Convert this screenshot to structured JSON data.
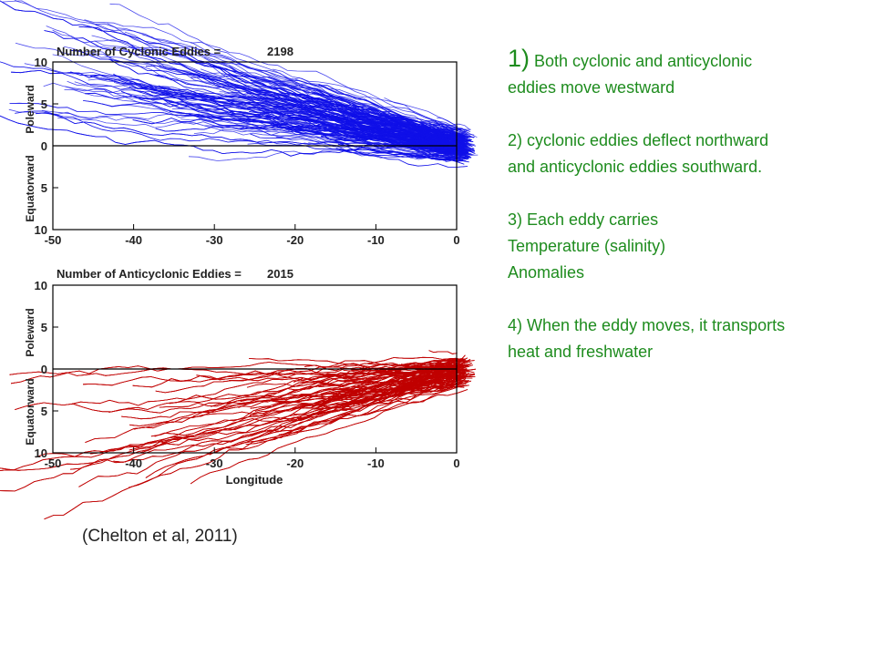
{
  "chart_data": [
    {
      "type": "line",
      "title": "Number of Cyclonic Eddies =",
      "count": "2198",
      "xlabel": "",
      "ylabel_top": "Poleward",
      "ylabel_bottom": "Equatorward",
      "xlim": [
        -50,
        0
      ],
      "ylim": [
        -10,
        10
      ],
      "x_ticks": [
        "-50",
        "-40",
        "-30",
        "-20",
        "-10",
        "0"
      ],
      "y_ticks": [
        "10",
        "5",
        "0",
        "5",
        "10"
      ],
      "color": "#1010e8",
      "mean_direction": "northwest",
      "note": "eddy trajectories originate at longitude 0 and spread westward, deflecting poleward"
    },
    {
      "type": "line",
      "title": "Number of Anticyclonic Eddies =",
      "count": "2015",
      "xlabel": "Longitude",
      "ylabel_top": "Poleward",
      "ylabel_bottom": "Equatorward",
      "xlim": [
        -50,
        0
      ],
      "ylim": [
        -10,
        10
      ],
      "x_ticks": [
        "-50",
        "-40",
        "-30",
        "-20",
        "-10",
        "0"
      ],
      "y_ticks": [
        "10",
        "5",
        "0",
        "5",
        "10"
      ],
      "color": "#c00000",
      "mean_direction": "southwest",
      "note": "eddy trajectories originate at longitude 0 and spread westward, deflecting equatorward"
    }
  ],
  "bullets": {
    "b1_num": "1)",
    "b1_rest": " Both cyclonic and anticyclonic",
    "b1_line2": "eddies move westward",
    "b2_line1": "2) cyclonic eddies deflect northward",
    "b2_line2": "and anticyclonic eddies southward.",
    "b3_line1": "3) Each eddy carries",
    "b3_line2": "Temperature (salinity)",
    "b3_line3": "Anomalies",
    "b4_line1": "4) When the eddy moves, it transports",
    "b4_line2": "heat and freshwater"
  },
  "citation": "(Chelton et al, 2011)"
}
